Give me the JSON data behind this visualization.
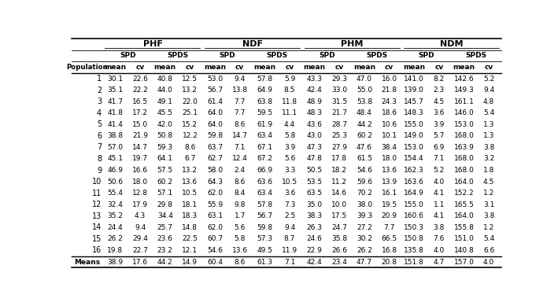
{
  "groups": [
    "PHF",
    "NDF",
    "PHM",
    "NDM"
  ],
  "subgroups": [
    "SPD",
    "SPDS",
    "SPD",
    "SPDS",
    "SPD",
    "SPDS",
    "SPD",
    "SPDS"
  ],
  "col_headers": [
    "mean",
    "cv",
    "mean",
    "cv",
    "mean",
    "cv",
    "mean",
    "cv",
    "mean",
    "cv",
    "mean",
    "cv",
    "mean",
    "cv",
    "mean",
    "cv"
  ],
  "populations": [
    "1",
    "2",
    "3",
    "4",
    "5",
    "6",
    "7",
    "8",
    "9",
    "10",
    "11",
    "12",
    "13",
    "14",
    "15",
    "16"
  ],
  "data": [
    [
      30.1,
      22.6,
      40.8,
      12.5,
      53.0,
      9.4,
      57.8,
      5.9,
      43.3,
      29.3,
      47.0,
      16.0,
      141.0,
      8.2,
      142.6,
      5.2
    ],
    [
      35.1,
      22.2,
      44.0,
      13.2,
      56.7,
      13.8,
      64.9,
      8.5,
      42.4,
      33.0,
      55.0,
      21.8,
      139.0,
      2.3,
      149.3,
      9.4
    ],
    [
      41.7,
      16.5,
      49.1,
      22.0,
      61.4,
      7.7,
      63.8,
      11.8,
      48.9,
      31.5,
      53.8,
      24.3,
      145.7,
      4.5,
      161.1,
      4.8
    ],
    [
      41.8,
      17.2,
      45.5,
      25.1,
      64.0,
      7.7,
      59.5,
      11.1,
      48.3,
      21.7,
      48.4,
      18.6,
      148.3,
      3.6,
      146.0,
      5.4
    ],
    [
      41.4,
      15.0,
      42.0,
      15.2,
      64.0,
      8.6,
      61.9,
      4.4,
      43.6,
      28.7,
      44.2,
      10.6,
      155.0,
      3.9,
      153.0,
      1.3
    ],
    [
      38.8,
      21.9,
      50.8,
      12.2,
      59.8,
      14.7,
      63.4,
      5.8,
      43.0,
      25.3,
      60.2,
      10.1,
      149.0,
      5.7,
      168.0,
      1.3
    ],
    [
      57.0,
      14.7,
      59.3,
      8.6,
      63.7,
      7.1,
      67.1,
      3.9,
      47.3,
      27.9,
      47.6,
      38.4,
      153.0,
      6.9,
      163.9,
      3.8
    ],
    [
      45.1,
      19.7,
      64.1,
      6.7,
      62.7,
      12.4,
      67.2,
      5.6,
      47.8,
      17.8,
      61.5,
      18.0,
      154.4,
      7.1,
      168.0,
      3.2
    ],
    [
      46.9,
      16.6,
      57.5,
      13.2,
      58.0,
      2.4,
      66.9,
      3.3,
      50.5,
      18.2,
      54.6,
      13.6,
      162.3,
      5.2,
      168.0,
      1.8
    ],
    [
      50.6,
      18.0,
      60.2,
      13.6,
      64.3,
      8.6,
      63.6,
      10.5,
      53.5,
      11.2,
      59.6,
      13.9,
      163.6,
      4.0,
      164.0,
      4.5
    ],
    [
      55.4,
      12.8,
      57.1,
      10.5,
      62.0,
      8.4,
      63.4,
      3.6,
      63.5,
      14.6,
      70.2,
      16.1,
      164.9,
      4.1,
      152.2,
      1.2
    ],
    [
      32.4,
      17.9,
      29.8,
      18.1,
      55.9,
      9.8,
      57.8,
      7.3,
      35.0,
      10.0,
      38.0,
      19.5,
      155.0,
      1.1,
      165.5,
      3.1
    ],
    [
      35.2,
      4.3,
      34.4,
      18.3,
      63.1,
      1.7,
      56.7,
      2.5,
      38.3,
      17.5,
      39.3,
      20.9,
      160.6,
      4.1,
      164.0,
      3.8
    ],
    [
      24.4,
      9.4,
      25.7,
      14.8,
      62.0,
      5.6,
      59.8,
      9.4,
      26.3,
      24.7,
      27.2,
      7.7,
      150.3,
      3.8,
      155.8,
      1.2
    ],
    [
      26.2,
      29.4,
      23.6,
      22.5,
      60.7,
      5.8,
      57.3,
      8.7,
      24.6,
      35.8,
      30.2,
      66.5,
      150.8,
      7.6,
      151.0,
      5.4
    ],
    [
      19.8,
      22.7,
      23.2,
      12.1,
      54.6,
      13.6,
      49.5,
      11.9,
      22.9,
      26.6,
      26.2,
      16.8,
      135.8,
      4.0,
      140.8,
      6.6
    ]
  ],
  "means_row": [
    38.9,
    17.6,
    44.2,
    14.9,
    60.4,
    8.6,
    61.3,
    7.1,
    42.4,
    23.4,
    47.7,
    20.8,
    151.8,
    4.7,
    157.0,
    4.0
  ],
  "bg_color": "#ffffff"
}
